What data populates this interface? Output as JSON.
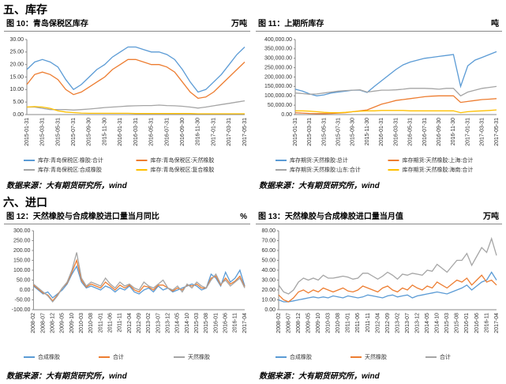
{
  "sections": [
    {
      "heading": "五、库存"
    },
    {
      "heading": "六、进口"
    }
  ],
  "chart_data": [
    {
      "type": "line",
      "title": "图 10：青岛保税区库存",
      "unit": "万吨",
      "source": "数据来源：大有期货研究所，wind",
      "categories": [
        "2015-01-31",
        null,
        "2015-03-31",
        null,
        "2015-05-31",
        null,
        "2015-07-31",
        null,
        "2015-09-30",
        null,
        "2015-11-30",
        null,
        "2016-01-31",
        null,
        "2016-03-31",
        null,
        "2016-05-31",
        null,
        "2016-07-31",
        null,
        "2016-09-30",
        null,
        "2016-11-30",
        null,
        "2017-01-31",
        null,
        "2017-03-31",
        null,
        "2017-05-31"
      ],
      "ylim": [
        0,
        30
      ],
      "yticks": [
        {
          "value": 0,
          "label": "0.00"
        },
        {
          "value": 5,
          "label": "5.00"
        },
        {
          "value": 10,
          "label": "10.00"
        },
        {
          "value": 15,
          "label": "15.00"
        },
        {
          "value": 20,
          "label": "20.00"
        },
        {
          "value": 25,
          "label": "25.00"
        },
        {
          "value": 30,
          "label": "30.00"
        }
      ],
      "grid": false,
      "series": [
        {
          "name": "库存:青岛保税区:橡胶:合计",
          "color": "#5b9bd5",
          "values": [
            18,
            21,
            22,
            21,
            19,
            14,
            10,
            12,
            15,
            18,
            20,
            23,
            25,
            27,
            27,
            26,
            25,
            25,
            24,
            22,
            18,
            13,
            9,
            10,
            13,
            16,
            20,
            24,
            27
          ]
        },
        {
          "name": "库存:青岛保税区:天然橡胶",
          "color": "#ed7d31",
          "values": [
            12,
            16,
            17,
            16,
            14,
            10,
            8,
            9,
            11,
            13,
            15,
            18,
            20,
            22,
            22,
            21,
            20,
            20,
            19,
            17,
            13,
            9,
            6.5,
            7,
            9,
            12,
            15,
            18,
            21
          ]
        },
        {
          "name": "库存:青岛保税区:合成橡胶",
          "color": "#a5a5a5",
          "values": [
            3,
            3,
            2.5,
            2,
            2,
            2,
            1.8,
            2,
            2.2,
            2.5,
            2.8,
            3,
            3.2,
            3.4,
            3.5,
            3.6,
            3.6,
            3.8,
            3.6,
            3.5,
            3.3,
            3,
            2.6,
            3,
            3.5,
            4,
            4.5,
            5,
            5.5
          ]
        },
        {
          "name": "库存:青岛保税区:复合橡胶",
          "color": "#ffc000",
          "values": [
            3,
            3.2,
            3,
            2.5,
            1.5,
            1,
            0.8,
            0.6,
            0.5,
            0.5,
            0.5,
            0.5,
            0.5,
            0.5,
            0.4,
            0.4,
            0.4,
            0.4,
            0.4,
            0.4,
            0.4,
            0.4,
            0.3,
            0.3,
            0.3,
            0.3,
            0.3,
            0.3,
            0.3
          ]
        }
      ]
    },
    {
      "type": "line",
      "title": "图 11：上期所库存",
      "unit": "吨",
      "source": "数据来源：大有期货研究所，wind",
      "categories": [
        "2015-01-31",
        null,
        "2015-03-31",
        null,
        "2015-05-31",
        null,
        "2015-07-31",
        null,
        "2015-09-30",
        null,
        "2015-11-30",
        null,
        "2016-01-31",
        null,
        "2016-03-31",
        null,
        "2016-05-31",
        null,
        "2016-07-31",
        null,
        "2016-09-30",
        null,
        "2016-11-30",
        null,
        "2017-01-31",
        null,
        "2017-03-31",
        null,
        "2017-05-31"
      ],
      "ylim": [
        0,
        400000
      ],
      "yticks": [
        {
          "value": 0,
          "label": "0.00"
        },
        {
          "value": 50000,
          "label": "50,000.00"
        },
        {
          "value": 100000,
          "label": "100,000.00"
        },
        {
          "value": 150000,
          "label": "150,000.00"
        },
        {
          "value": 200000,
          "label": "200,000.00"
        },
        {
          "value": 250000,
          "label": "250,000.00"
        },
        {
          "value": 300000,
          "label": "300,000.00"
        },
        {
          "value": 350000,
          "label": "350,000.00"
        },
        {
          "value": 400000,
          "label": "400,000.00"
        }
      ],
      "grid": false,
      "series": [
        {
          "name": "库存期货:天然橡胶:总计",
          "color": "#5b9bd5",
          "values": [
            135000,
            125000,
            110000,
            100000,
            105000,
            115000,
            120000,
            125000,
            130000,
            130000,
            118000,
            150000,
            180000,
            210000,
            240000,
            265000,
            280000,
            290000,
            300000,
            305000,
            310000,
            315000,
            320000,
            150000,
            260000,
            290000,
            305000,
            320000,
            335000
          ]
        },
        {
          "name": "库存期货:天然橡胶:上海:合计",
          "color": "#ed7d31",
          "values": [
            10000,
            8000,
            6000,
            5000,
            5000,
            6000,
            8000,
            10000,
            15000,
            20000,
            25000,
            40000,
            55000,
            65000,
            75000,
            80000,
            85000,
            90000,
            95000,
            98000,
            100000,
            100000,
            100000,
            65000,
            70000,
            75000,
            80000,
            82000,
            85000
          ]
        },
        {
          "name": "库存期货:天然橡胶:山东:合计",
          "color": "#a5a5a5",
          "values": [
            115000,
            112000,
            108000,
            110000,
            115000,
            120000,
            125000,
            128000,
            130000,
            132000,
            120000,
            125000,
            130000,
            130000,
            132000,
            135000,
            140000,
            140000,
            140000,
            138000,
            135000,
            140000,
            140000,
            100000,
            120000,
            130000,
            140000,
            145000,
            150000
          ]
        },
        {
          "name": "库存期货:天然橡胶:海南:合计",
          "color": "#ffc000",
          "values": [
            20000,
            20000,
            18000,
            15000,
            12000,
            10000,
            10000,
            12000,
            15000,
            18000,
            20000,
            20000,
            22000,
            22000,
            22000,
            22000,
            20000,
            20000,
            20000,
            20000,
            20000,
            20000,
            20000,
            10000,
            15000,
            18000,
            20000,
            22000,
            25000
          ]
        }
      ]
    },
    {
      "type": "line",
      "title": "图 12：天然橡胶与合成橡胶进口量当月同比",
      "unit": "%",
      "source": "数据来源：大有期货研究所，wind",
      "categories": [
        "2008-02",
        null,
        "2008-07",
        null,
        "2008-12",
        null,
        "2009-05",
        null,
        "2009-10",
        null,
        "2010-03",
        null,
        "2010-08",
        null,
        "2011-01",
        null,
        "2011-06",
        null,
        "2011-11",
        null,
        "2012-04",
        null,
        "2012-09",
        null,
        "2013-02",
        null,
        "2013-07",
        null,
        "2013-12",
        null,
        "2014-05",
        null,
        "2014-10",
        null,
        "2015-03",
        null,
        "2015-08",
        null,
        "2016-01",
        null,
        "2016-06",
        null,
        "2016-11",
        null,
        "2017-04"
      ],
      "ylim": [
        -100,
        300
      ],
      "yticks": [
        {
          "value": -100,
          "label": "-100.00"
        },
        {
          "value": -50,
          "label": "-50.00"
        },
        {
          "value": 0,
          "label": "0.00"
        },
        {
          "value": 50,
          "label": "50.00"
        },
        {
          "value": 100,
          "label": "100.00"
        },
        {
          "value": 150,
          "label": "150.00"
        },
        {
          "value": 200,
          "label": "200.00"
        },
        {
          "value": 250,
          "label": "250.00"
        },
        {
          "value": 300,
          "label": "300.00"
        }
      ],
      "grid": false,
      "series": [
        {
          "name": "合成橡胶",
          "color": "#5b9bd5",
          "values": [
            20,
            0,
            -20,
            -10,
            -40,
            -20,
            0,
            30,
            80,
            120,
            40,
            10,
            20,
            10,
            0,
            20,
            10,
            -10,
            10,
            0,
            20,
            -10,
            -20,
            0,
            10,
            -10,
            20,
            0,
            10,
            -10,
            0,
            10,
            20,
            30,
            20,
            0,
            10,
            80,
            60,
            20,
            90,
            40,
            60,
            100,
            20
          ]
        },
        {
          "name": "合计",
          "color": "#ed7d31",
          "values": [
            25,
            5,
            -15,
            -25,
            -55,
            -25,
            10,
            35,
            90,
            150,
            50,
            15,
            30,
            20,
            10,
            40,
            20,
            0,
            25,
            10,
            25,
            0,
            -10,
            20,
            15,
            0,
            25,
            25,
            10,
            -5,
            10,
            0,
            25,
            20,
            30,
            10,
            10,
            60,
            70,
            25,
            60,
            30,
            45,
            70,
            15
          ]
        },
        {
          "name": "天然橡胶",
          "color": "#a5a5a5",
          "values": [
            30,
            10,
            -10,
            -30,
            -60,
            -30,
            10,
            40,
            100,
            190,
            60,
            20,
            40,
            30,
            20,
            60,
            30,
            10,
            40,
            20,
            30,
            10,
            0,
            40,
            20,
            10,
            30,
            50,
            10,
            0,
            20,
            -10,
            30,
            10,
            40,
            20,
            10,
            50,
            80,
            30,
            50,
            20,
            40,
            60,
            10
          ]
        }
      ]
    },
    {
      "type": "line",
      "title": "图 13：天然橡胶与合成橡胶进口量当月值",
      "unit": "万吨",
      "source": "数据来源：大有期货研究所，wind",
      "categories": [
        "2008-02",
        null,
        "2008-07",
        null,
        "2008-12",
        null,
        "2009-05",
        null,
        "2009-10",
        null,
        "2010-03",
        null,
        "2010-08",
        null,
        "2011-01",
        null,
        "2011-06",
        null,
        "2011-11",
        null,
        "2012-04",
        null,
        "2012-09",
        null,
        "2013-02",
        null,
        "2013-07",
        null,
        "2013-12",
        null,
        "2014-05",
        null,
        "2014-10",
        null,
        "2015-03",
        null,
        "2015-08",
        null,
        "2016-01",
        null,
        "2016-06",
        null,
        "2016-11",
        null,
        "2017-04"
      ],
      "ylim": [
        0,
        80
      ],
      "yticks": [
        {
          "value": 0,
          "label": "0.00"
        },
        {
          "value": 10,
          "label": "10.00"
        },
        {
          "value": 20,
          "label": "20.00"
        },
        {
          "value": 30,
          "label": "30.00"
        },
        {
          "value": 40,
          "label": "40.00"
        },
        {
          "value": 50,
          "label": "50.00"
        },
        {
          "value": 60,
          "label": "60.00"
        },
        {
          "value": 70,
          "label": "70.00"
        },
        {
          "value": 80,
          "label": "80.00"
        }
      ],
      "grid": false,
      "series": [
        {
          "name": "合成橡胶",
          "color": "#5b9bd5",
          "values": [
            10,
            8,
            8,
            9,
            10,
            11,
            12,
            13,
            12,
            13,
            12,
            14,
            13,
            12,
            14,
            13,
            12,
            13,
            15,
            14,
            13,
            12,
            14,
            15,
            13,
            14,
            15,
            12,
            14,
            15,
            16,
            17,
            18,
            17,
            16,
            18,
            20,
            22,
            25,
            20,
            24,
            28,
            30,
            38,
            30
          ]
        },
        {
          "name": "天然橡胶",
          "color": "#ed7d31",
          "values": [
            15,
            10,
            8,
            12,
            18,
            20,
            17,
            20,
            18,
            22,
            20,
            18,
            20,
            22,
            19,
            18,
            20,
            24,
            22,
            20,
            18,
            22,
            24,
            20,
            18,
            22,
            20,
            25,
            22,
            20,
            24,
            22,
            28,
            25,
            22,
            26,
            30,
            28,
            32,
            25,
            30,
            35,
            28,
            30,
            25
          ]
        },
        {
          "name": "合计",
          "color": "#a5a5a5",
          "values": [
            25,
            18,
            16,
            20,
            28,
            32,
            30,
            32,
            30,
            35,
            32,
            32,
            33,
            34,
            33,
            31,
            32,
            37,
            37,
            34,
            31,
            34,
            38,
            35,
            31,
            36,
            35,
            37,
            36,
            35,
            40,
            39,
            46,
            42,
            38,
            44,
            50,
            50,
            57,
            45,
            54,
            63,
            58,
            72,
            55
          ]
        }
      ]
    }
  ]
}
